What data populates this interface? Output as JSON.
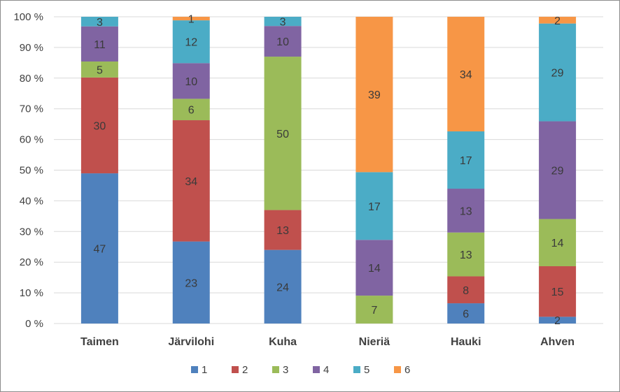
{
  "chart_data": {
    "type": "bar",
    "stacked": "percent",
    "title": "",
    "xlabel": "",
    "ylabel": "",
    "ylim": [
      0,
      100
    ],
    "y_ticks": [
      "0 %",
      "10 %",
      "20 %",
      "30 %",
      "40 %",
      "50 %",
      "60 %",
      "70 %",
      "80 %",
      "90 %",
      "100 %"
    ],
    "grid": true,
    "legend_position": "bottom",
    "categories": [
      "Taimen",
      "Järvilohi",
      "Kuha",
      "Nieriä",
      "Hauki",
      "Ahven"
    ],
    "series": [
      {
        "name": "1",
        "color": "#4f81bd",
        "values": [
          47,
          23,
          24,
          0,
          6,
          2
        ]
      },
      {
        "name": "2",
        "color": "#c0504d",
        "values": [
          30,
          34,
          13,
          0,
          8,
          15
        ]
      },
      {
        "name": "3",
        "color": "#9bbb59",
        "values": [
          5,
          6,
          50,
          7,
          13,
          14
        ]
      },
      {
        "name": "4",
        "color": "#8064a2",
        "values": [
          11,
          10,
          10,
          14,
          13,
          29
        ]
      },
      {
        "name": "5",
        "color": "#4bacc6",
        "values": [
          3,
          12,
          3,
          17,
          17,
          29
        ]
      },
      {
        "name": "6",
        "color": "#f79646",
        "values": [
          0,
          1,
          0,
          39,
          34,
          2
        ]
      }
    ]
  }
}
